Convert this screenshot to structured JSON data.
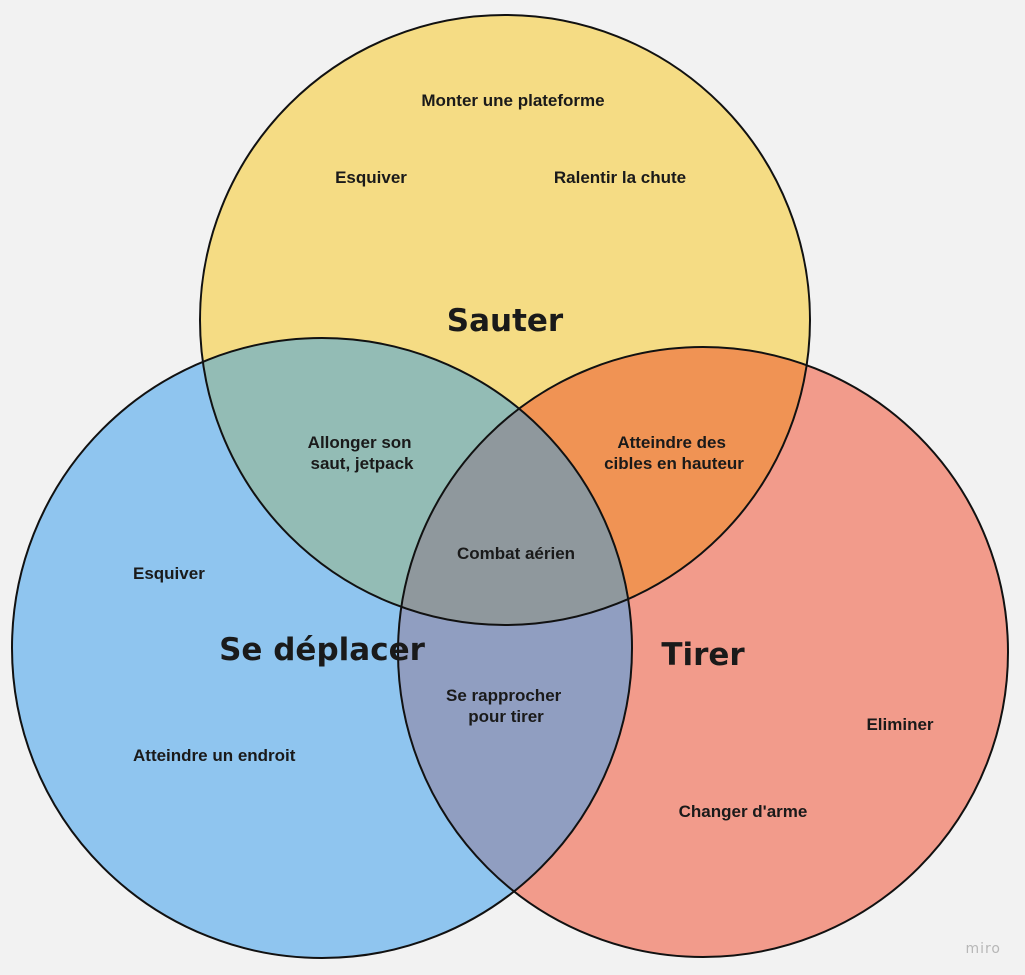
{
  "sets": {
    "top": {
      "title": "Sauter",
      "color": "#f5dc84"
    },
    "left": {
      "title": "Se déplacer",
      "color": "#8fc5ef"
    },
    "right": {
      "title": "Tirer",
      "color": "#f29b8b"
    }
  },
  "overlap_colors": {
    "top_left": "#93bcb5",
    "top_right": "#f09354",
    "left_right": "#909ec1",
    "center": "#8f989d"
  },
  "stroke_color": "#111111",
  "labels": {
    "top_1": "Monter une plateforme",
    "top_2": "Esquiver",
    "top_3": "Ralentir la chute",
    "top_left": [
      "Allonger son",
      "saut, jetpack"
    ],
    "top_right": [
      "Atteindre des",
      "cibles en hauteur"
    ],
    "center": "Combat aérien",
    "left_1": "Esquiver",
    "left_2": "Atteindre un endroit",
    "left_right": [
      "Se rapprocher",
      "pour tirer"
    ],
    "right_1": "Eliminer",
    "right_2": "Changer d'arme"
  },
  "watermark": "miro"
}
